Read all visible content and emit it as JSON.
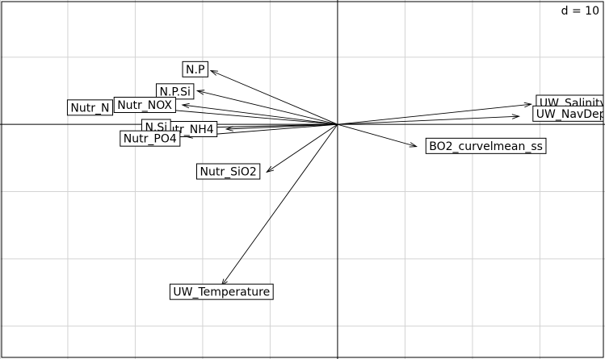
{
  "chart_data": {
    "type": "scatter",
    "subtype": "correlation-circle-arrows",
    "scale_label": "d = 10",
    "grid": true,
    "xlim": [
      -50.05,
      39.65
    ],
    "ylim": [
      -34.9,
      18.5
    ],
    "origin": [
      0,
      0
    ],
    "arrows": [
      {
        "label": "N.P",
        "x": -18.8,
        "y": 8.0,
        "label_x": -21.1,
        "label_y": 8.2
      },
      {
        "label": "N.P.Si",
        "x": -20.8,
        "y": 5.0,
        "label_x": -24.1,
        "label_y": 4.9
      },
      {
        "label": "Nutr_NOX",
        "x": -23.0,
        "y": 2.9,
        "label_x": -28.6,
        "label_y": 2.9
      },
      {
        "label": "Nutr_N",
        "x": -25.5,
        "y": 2.2,
        "label_x": -36.7,
        "label_y": 2.5
      },
      {
        "label": "Nutr_NH4",
        "x": -16.5,
        "y": -0.7,
        "label_x": -22.4,
        "label_y": -0.7
      },
      {
        "label": "N.Si",
        "x": -21.4,
        "y": -0.5,
        "label_x": -26.9,
        "label_y": -0.4
      },
      {
        "label": "Nutr_PO4",
        "x": -22.5,
        "y": -1.8,
        "label_x": -27.8,
        "label_y": -2.1
      },
      {
        "label": "Nutr_SiO2",
        "x": -10.5,
        "y": -7.1,
        "label_x": -16.2,
        "label_y": -7.0
      },
      {
        "label": "UW_Temperature",
        "x": -17.2,
        "y": -24.0,
        "label_x": -17.2,
        "label_y": -24.9
      },
      {
        "label": "UW_Salinity",
        "x": 28.7,
        "y": 3.0,
        "label_x": 34.9,
        "label_y": 3.2
      },
      {
        "label": "UW_NavDepth",
        "x": 26.9,
        "y": 1.2,
        "label_x": 35.5,
        "label_y": 1.6
      },
      {
        "label": "BO2_curvelmean_ss",
        "x": 11.7,
        "y": -3.3,
        "label_x": 22.0,
        "label_y": -3.2
      }
    ]
  }
}
